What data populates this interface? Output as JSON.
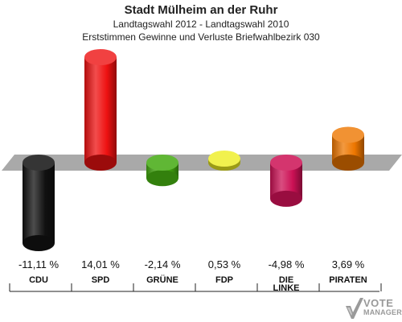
{
  "chart_data": {
    "type": "bar",
    "title": "Stadt Mülheim an der Ruhr",
    "subtitle": "Landtagswahl 2012 - Landtagswahl 2010",
    "subtitle2": "Erststimmen Gewinne und Verluste Briefwahlbezirk 030",
    "categories": [
      "CDU",
      "SPD",
      "GRÜNE",
      "FDP",
      "DIE LINKE",
      "PIRATEN"
    ],
    "values": [
      -11.11,
      14.01,
      -2.14,
      0.53,
      -4.98,
      3.69
    ],
    "value_labels": [
      "-11,11 %",
      "14,01 %",
      "-2,14 %",
      "0,53 %",
      "-4,98 %",
      "3,69 %"
    ],
    "colors": [
      "#111111",
      "#ee1111",
      "#44aa11",
      "#eeee22",
      "#cc1155",
      "#ee7700"
    ],
    "ylim": [
      -11.11,
      14.01
    ],
    "grid": false,
    "legend": "none"
  },
  "logo": {
    "line1": "VOTE",
    "line2": "MANAGER"
  }
}
